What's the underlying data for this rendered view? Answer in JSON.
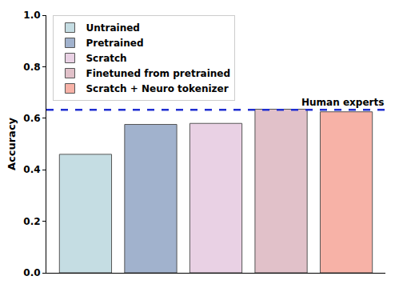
{
  "chart_data": {
    "type": "bar",
    "categories": [
      "Untrained",
      "Pretrained",
      "Scratch",
      "Finetuned from pretrained",
      "Scratch + Neuro tokenizer"
    ],
    "values": [
      0.46,
      0.576,
      0.58,
      0.635,
      0.625
    ],
    "colors": [
      "#c5dde3",
      "#a1b2cd",
      "#e9d1e4",
      "#e1c1c9",
      "#f7b2a7"
    ],
    "y_label": "Accuracy",
    "ylim": [
      0,
      1
    ],
    "yticks": [
      {
        "value": 0,
        "label": "0.0"
      },
      0.2,
      0.4,
      0.6,
      0.8,
      {
        "value": 1,
        "label": "1.0"
      }
    ],
    "grid": false,
    "legend": "upper left",
    "tick_labels": "y",
    "reference_lines": [
      {
        "label": "Human experts",
        "value": 0.633,
        "color": "#1f2ed1",
        "line_style": "dashed"
      }
    ]
  }
}
